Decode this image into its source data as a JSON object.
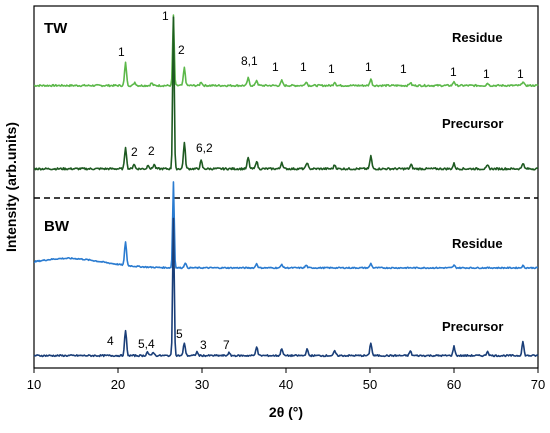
{
  "chart_data": {
    "type": "line",
    "xlabel": "2θ (°)",
    "ylabel": "Intensity (arb.units)",
    "xlim": [
      10,
      70
    ],
    "xticks": [
      "10",
      "20",
      "30",
      "40",
      "50",
      "60",
      "70"
    ],
    "y_ticks_shown": false,
    "grid": false,
    "legend": "none",
    "panels": [
      {
        "name": "TW",
        "traces": [
          {
            "label": "Residue",
            "color": "#5cb84a",
            "baseline": 0.6,
            "noise": 0.22,
            "peaks": [
              [
                20.9,
                5.5
              ],
              [
                22.0,
                0.8
              ],
              [
                24.0,
                0.6
              ],
              [
                26.6,
                17
              ],
              [
                27.9,
                4.3
              ],
              [
                29.9,
                0.9
              ],
              [
                35.5,
                1.8
              ],
              [
                36.5,
                1.3
              ],
              [
                39.5,
                1.2
              ],
              [
                42.4,
                1.0
              ],
              [
                45.8,
                0.9
              ],
              [
                50.1,
                1.6
              ],
              [
                54.8,
                0.7
              ],
              [
                60.0,
                1.0
              ],
              [
                64.0,
                0.6
              ],
              [
                68.2,
                1.0
              ]
            ]
          },
          {
            "label": "Precursor",
            "color": "#1e5a21",
            "baseline": 0.3,
            "noise": 0.25,
            "peaks": [
              [
                20.9,
                5.5
              ],
              [
                21.9,
                1.2
              ],
              [
                23.6,
                1.0
              ],
              [
                24.3,
                1.1
              ],
              [
                26.6,
                38
              ],
              [
                27.9,
                6.5
              ],
              [
                29.9,
                2.0
              ],
              [
                35.5,
                2.8
              ],
              [
                36.5,
                2.0
              ],
              [
                39.5,
                1.7
              ],
              [
                42.5,
                1.6
              ],
              [
                45.8,
                1.0
              ],
              [
                50.1,
                3.2
              ],
              [
                54.9,
                1.0
              ],
              [
                60.0,
                1.3
              ],
              [
                64.0,
                0.8
              ],
              [
                68.2,
                1.5
              ]
            ]
          }
        ],
        "peak_labels": [
          "1",
          "1",
          "2",
          "8,1",
          "1",
          "1",
          "1",
          "1",
          "1",
          "1",
          "1",
          "1",
          "2",
          "2",
          "6,2"
        ]
      },
      {
        "name": "BW",
        "traces": [
          {
            "label": "Residue",
            "color": "#2a7bd0",
            "baseline": 0.5,
            "noise": 0.15,
            "hump": {
              "center": 14,
              "height": 2.2,
              "width": 6
            },
            "peaks": [
              [
                20.9,
                5.5
              ],
              [
                26.6,
                20
              ],
              [
                28.0,
                1.2
              ],
              [
                36.5,
                1.0
              ],
              [
                39.5,
                0.8
              ],
              [
                42.4,
                0.6
              ],
              [
                50.1,
                1.0
              ],
              [
                60.0,
                0.6
              ],
              [
                68.2,
                0.5
              ]
            ]
          },
          {
            "label": "Precursor",
            "color": "#1a3e78",
            "baseline": 0.3,
            "noise": 0.18,
            "peaks": [
              [
                20.9,
                5.5
              ],
              [
                23.5,
                0.8
              ],
              [
                24.2,
                0.8
              ],
              [
                26.6,
                30
              ],
              [
                27.9,
                2.8
              ],
              [
                29.4,
                0.8
              ],
              [
                33.2,
                0.6
              ],
              [
                36.5,
                2.0
              ],
              [
                39.5,
                1.6
              ],
              [
                42.5,
                1.4
              ],
              [
                45.8,
                1.0
              ],
              [
                50.1,
                2.8
              ],
              [
                54.8,
                1.0
              ],
              [
                60.0,
                2.0
              ],
              [
                64.0,
                1.0
              ],
              [
                68.2,
                3.0
              ]
            ]
          }
        ],
        "peak_labels": [
          "4",
          "5,4",
          "5",
          "3",
          "7"
        ]
      }
    ]
  }
}
